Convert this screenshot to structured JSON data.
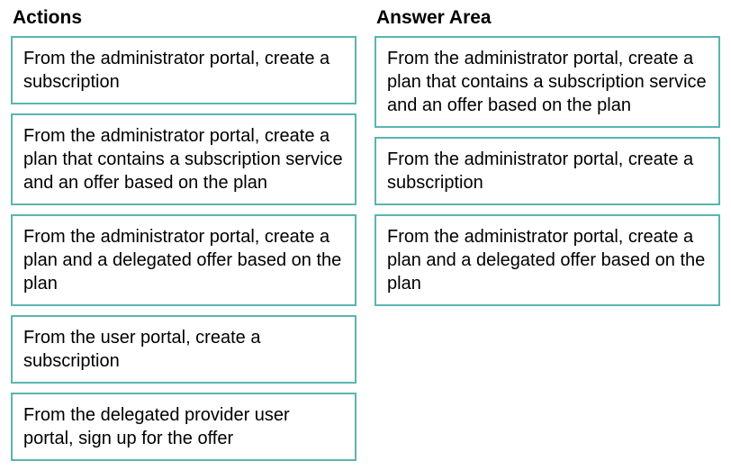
{
  "columns": {
    "actions": {
      "header": "Actions",
      "items": [
        "From the administrator portal, create a subscription",
        "From the administrator portal, create a plan that contains a subscription service and an offer based on the plan",
        "From the administrator portal, create a plan and a delegated offer based on the plan",
        "From the user portal, create a subscription",
        "From the delegated provider user portal, sign up for the offer"
      ]
    },
    "answer": {
      "header": "Answer Area",
      "items": [
        "From the administrator portal, create a plan that contains a subscription service and an offer based on the plan",
        "From the administrator portal, create a subscription",
        "From the administrator portal, create a plan and a delegated offer based on the plan"
      ]
    }
  },
  "styles": {
    "box_border_color": "#5ab5b0",
    "box_background": "#ffffff",
    "text_color": "#000000",
    "font_size": 20,
    "header_font_size": 21
  }
}
